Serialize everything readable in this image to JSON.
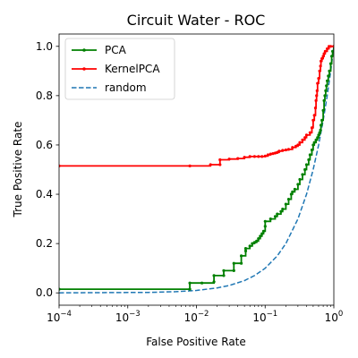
{
  "chart_data": {
    "type": "line",
    "title": "Circuit Water - ROC",
    "xlabel": "False Positive Rate",
    "ylabel": "True Positive Rate",
    "xscale": "log",
    "xlim": [
      0.0001,
      1
    ],
    "ylim": [
      -0.05,
      1.05
    ],
    "x_ticks": [
      {
        "value": 0.0001,
        "base": "10",
        "exp": "−4"
      },
      {
        "value": 0.001,
        "base": "10",
        "exp": "−3"
      },
      {
        "value": 0.01,
        "base": "10",
        "exp": "−2"
      },
      {
        "value": 0.1,
        "base": "10",
        "exp": "−1"
      },
      {
        "value": 1,
        "base": "10",
        "exp": "0"
      }
    ],
    "y_ticks": [
      {
        "value": 0.0,
        "label": "0.0"
      },
      {
        "value": 0.2,
        "label": "0.2"
      },
      {
        "value": 0.4,
        "label": "0.4"
      },
      {
        "value": 0.6,
        "label": "0.6"
      },
      {
        "value": 0.8,
        "label": "0.8"
      },
      {
        "value": 1.0,
        "label": "1.0"
      }
    ],
    "grid": false,
    "legend_position": "top-left",
    "series": [
      {
        "name": "PCA",
        "color": "#008000",
        "style": "solid",
        "marker": "dot",
        "x": [
          0.0001,
          0.008,
          0.008,
          0.012,
          0.018,
          0.018,
          0.025,
          0.025,
          0.035,
          0.035,
          0.045,
          0.045,
          0.052,
          0.052,
          0.06,
          0.065,
          0.07,
          0.075,
          0.08,
          0.085,
          0.09,
          0.095,
          0.1,
          0.1,
          0.12,
          0.14,
          0.15,
          0.17,
          0.18,
          0.2,
          0.22,
          0.24,
          0.25,
          0.27,
          0.3,
          0.32,
          0.35,
          0.38,
          0.4,
          0.43,
          0.45,
          0.48,
          0.5,
          0.52,
          0.55,
          0.58,
          0.6,
          0.62,
          0.64,
          0.65,
          0.67,
          0.7,
          0.72,
          0.74,
          0.76,
          0.78,
          0.8,
          0.83,
          0.86,
          0.9,
          0.93,
          0.96,
          1.0
        ],
        "y": [
          0.015,
          0.015,
          0.04,
          0.04,
          0.045,
          0.07,
          0.07,
          0.09,
          0.09,
          0.12,
          0.12,
          0.15,
          0.17,
          0.18,
          0.19,
          0.2,
          0.205,
          0.21,
          0.22,
          0.23,
          0.24,
          0.25,
          0.27,
          0.29,
          0.3,
          0.31,
          0.32,
          0.33,
          0.34,
          0.36,
          0.38,
          0.4,
          0.41,
          0.42,
          0.44,
          0.46,
          0.48,
          0.5,
          0.52,
          0.54,
          0.56,
          0.58,
          0.6,
          0.61,
          0.62,
          0.63,
          0.64,
          0.65,
          0.66,
          0.68,
          0.7,
          0.74,
          0.78,
          0.8,
          0.82,
          0.84,
          0.86,
          0.88,
          0.9,
          0.93,
          0.96,
          0.98,
          1.0
        ]
      },
      {
        "name": "KernelPCA",
        "color": "#ff0000",
        "style": "solid",
        "marker": "dot",
        "x": [
          0.0001,
          0.008,
          0.016,
          0.022,
          0.022,
          0.03,
          0.04,
          0.05,
          0.06,
          0.07,
          0.08,
          0.09,
          0.1,
          0.11,
          0.12,
          0.13,
          0.14,
          0.15,
          0.16,
          0.18,
          0.2,
          0.22,
          0.25,
          0.28,
          0.3,
          0.32,
          0.35,
          0.38,
          0.4,
          0.45,
          0.48,
          0.5,
          0.52,
          0.54,
          0.55,
          0.56,
          0.57,
          0.58,
          0.6,
          0.62,
          0.64,
          0.65,
          0.67,
          0.7,
          0.72,
          0.75,
          0.8,
          0.85,
          0.9,
          1.0
        ],
        "y": [
          0.515,
          0.515,
          0.52,
          0.52,
          0.54,
          0.543,
          0.545,
          0.55,
          0.553,
          0.553,
          0.553,
          0.553,
          0.555,
          0.56,
          0.563,
          0.565,
          0.567,
          0.57,
          0.575,
          0.578,
          0.58,
          0.582,
          0.59,
          0.595,
          0.6,
          0.61,
          0.62,
          0.63,
          0.64,
          0.65,
          0.67,
          0.7,
          0.72,
          0.75,
          0.78,
          0.8,
          0.82,
          0.85,
          0.87,
          0.9,
          0.92,
          0.94,
          0.95,
          0.96,
          0.97,
          0.98,
          0.99,
          1.0,
          1.0,
          1.0
        ]
      },
      {
        "name": "random",
        "color": "#1f77b4",
        "style": "dashed",
        "marker": "none",
        "x": [
          0.0001,
          0.002,
          0.005,
          0.01,
          0.02,
          0.03,
          0.05,
          0.07,
          0.1,
          0.15,
          0.2,
          0.3,
          0.4,
          0.5,
          0.6,
          0.7,
          0.8,
          0.9,
          1.0
        ],
        "y": [
          0.0001,
          0.002,
          0.005,
          0.01,
          0.02,
          0.03,
          0.05,
          0.07,
          0.1,
          0.15,
          0.2,
          0.3,
          0.4,
          0.5,
          0.6,
          0.7,
          0.8,
          0.9,
          1.0
        ]
      }
    ]
  }
}
